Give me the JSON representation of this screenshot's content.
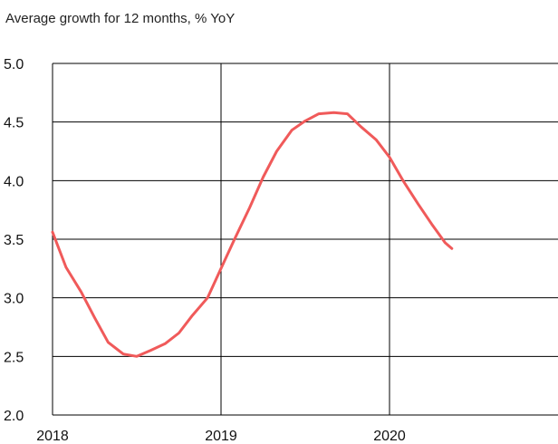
{
  "chart_data": {
    "type": "line",
    "title": "Average growth for 12 months, % YoY",
    "xlabel": "",
    "ylabel": "",
    "ylim": [
      2.0,
      5.0
    ],
    "xlim": [
      2018.0,
      2021.0
    ],
    "yticks": [
      "2.0",
      "2.5",
      "3.0",
      "3.5",
      "4.0",
      "4.5",
      "5.0"
    ],
    "xticks": [
      "2018",
      "2019",
      "2020"
    ],
    "grid": true,
    "legend": "none",
    "series": [
      {
        "color": "#f05a5a",
        "x": [
          2018.0,
          2018.08,
          2018.17,
          2018.25,
          2018.33,
          2018.42,
          2018.5,
          2018.58,
          2018.67,
          2018.75,
          2018.83,
          2018.92,
          2019.0,
          2019.08,
          2019.17,
          2019.25,
          2019.33,
          2019.42,
          2019.5,
          2019.58,
          2019.67,
          2019.75,
          2019.83,
          2019.92,
          2020.0,
          2020.08,
          2020.17,
          2020.25,
          2020.33,
          2020.37
        ],
        "y": [
          3.56,
          3.26,
          3.05,
          2.83,
          2.62,
          2.52,
          2.5,
          2.55,
          2.61,
          2.7,
          2.85,
          3.0,
          3.25,
          3.5,
          3.77,
          4.03,
          4.25,
          4.43,
          4.51,
          4.57,
          4.58,
          4.57,
          4.46,
          4.35,
          4.2,
          4.0,
          3.8,
          3.63,
          3.47,
          3.42
        ]
      }
    ]
  }
}
